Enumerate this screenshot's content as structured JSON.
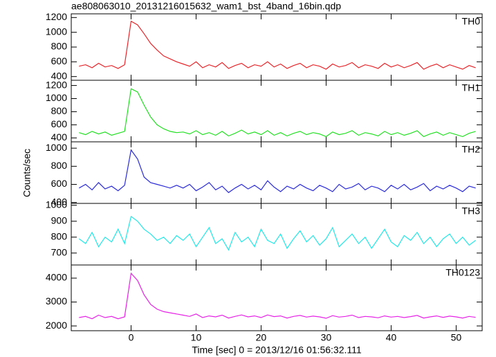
{
  "chart_data": {
    "type": "line",
    "title": "ae808063010_20131216015632_wam1_bst_4band_16bin.qdp",
    "x_label": "Time [sec] 0 = 2013/12/16 01:56:32.111",
    "y_label": "Counts/sec",
    "xlim": [
      -9.2,
      54
    ],
    "xticks": [
      0,
      10,
      20,
      30,
      40,
      50
    ],
    "x": [
      -8,
      -7,
      -6,
      -5,
      -4,
      -3,
      -2,
      -1,
      0,
      1,
      2,
      3,
      4,
      5,
      6,
      7,
      8,
      9,
      10,
      11,
      12,
      13,
      14,
      15,
      16,
      17,
      18,
      19,
      20,
      21,
      22,
      23,
      24,
      25,
      26,
      27,
      28,
      29,
      30,
      31,
      32,
      33,
      34,
      35,
      36,
      37,
      38,
      39,
      40,
      41,
      42,
      43,
      44,
      45,
      46,
      47,
      48,
      49,
      50,
      51,
      52,
      53
    ],
    "panels": [
      {
        "name": "TH0",
        "color": "#e8252a",
        "ylim": [
          350,
          1250
        ],
        "yticks": [
          400,
          600,
          800,
          1000,
          1200
        ],
        "values": [
          540,
          560,
          520,
          580,
          530,
          550,
          510,
          560,
          1150,
          1100,
          980,
          850,
          760,
          680,
          640,
          600,
          570,
          540,
          600,
          520,
          560,
          530,
          590,
          510,
          550,
          580,
          520,
          560,
          540,
          600,
          530,
          570,
          510,
          550,
          580,
          520,
          560,
          540,
          500,
          570,
          530,
          550,
          590,
          520,
          560,
          540,
          510,
          580,
          530,
          560,
          520,
          550,
          590,
          500,
          540,
          570,
          520,
          560,
          530,
          500,
          550,
          520
        ]
      },
      {
        "name": "TH1",
        "color": "#22e022",
        "ylim": [
          340,
          1280
        ],
        "yticks": [
          400,
          600,
          800,
          1000,
          1200
        ],
        "values": [
          480,
          450,
          500,
          460,
          490,
          440,
          470,
          500,
          1150,
          1100,
          900,
          720,
          600,
          540,
          500,
          480,
          490,
          460,
          510,
          450,
          480,
          440,
          500,
          430,
          470,
          520,
          460,
          490,
          450,
          510,
          440,
          480,
          430,
          470,
          500,
          450,
          480,
          460,
          420,
          490,
          450,
          470,
          510,
          440,
          480,
          460,
          430,
          500,
          450,
          480,
          440,
          470,
          510,
          420,
          460,
          490,
          440,
          480,
          450,
          420,
          470,
          500
        ]
      },
      {
        "name": "TH2",
        "color": "#2a2ad8",
        "ylim": [
          390,
          1070
        ],
        "yticks": [
          400,
          600,
          800,
          1000
        ],
        "values": [
          560,
          600,
          540,
          620,
          550,
          580,
          530,
          590,
          980,
          880,
          680,
          620,
          600,
          580,
          560,
          590,
          560,
          600,
          530,
          570,
          620,
          540,
          580,
          510,
          560,
          600,
          550,
          590,
          540,
          640,
          570,
          520,
          580,
          550,
          600,
          560,
          530,
          590,
          560,
          520,
          600,
          550,
          570,
          610,
          540,
          580,
          560,
          520,
          590,
          550,
          600,
          540,
          570,
          610,
          530,
          580,
          550,
          590,
          560,
          520,
          580,
          560
        ]
      },
      {
        "name": "TH3",
        "color": "#22e8e8",
        "ylim": [
          625,
          1012
        ],
        "yticks": [
          700,
          800,
          900,
          1000
        ],
        "values": [
          790,
          760,
          830,
          740,
          800,
          770,
          850,
          760,
          930,
          900,
          850,
          820,
          780,
          800,
          760,
          810,
          780,
          820,
          740,
          800,
          860,
          760,
          790,
          720,
          830,
          770,
          800,
          740,
          850,
          780,
          760,
          820,
          730,
          790,
          840,
          770,
          810,
          750,
          790,
          860,
          740,
          780,
          820,
          760,
          800,
          730,
          790,
          850,
          770,
          740,
          810,
          780,
          830,
          760,
          800,
          740,
          790,
          820,
          760,
          800,
          750,
          780
        ]
      },
      {
        "name": "TH0123",
        "color": "#e622e6",
        "ylim": [
          1800,
          4550
        ],
        "yticks": [
          2000,
          3000,
          4000
        ],
        "values": [
          2350,
          2400,
          2300,
          2450,
          2350,
          2400,
          2300,
          2380,
          4200,
          3900,
          3300,
          2900,
          2700,
          2600,
          2550,
          2500,
          2450,
          2400,
          2500,
          2350,
          2420,
          2380,
          2450,
          2330,
          2400,
          2460,
          2380,
          2420,
          2350,
          2460,
          2390,
          2420,
          2330,
          2400,
          2440,
          2370,
          2410,
          2380,
          2320,
          2430,
          2370,
          2400,
          2450,
          2350,
          2400,
          2380,
          2340,
          2420,
          2370,
          2400,
          2350,
          2390,
          2440,
          2330,
          2380,
          2420,
          2360,
          2410,
          2380,
          2330,
          2400,
          2360
        ]
      }
    ]
  }
}
